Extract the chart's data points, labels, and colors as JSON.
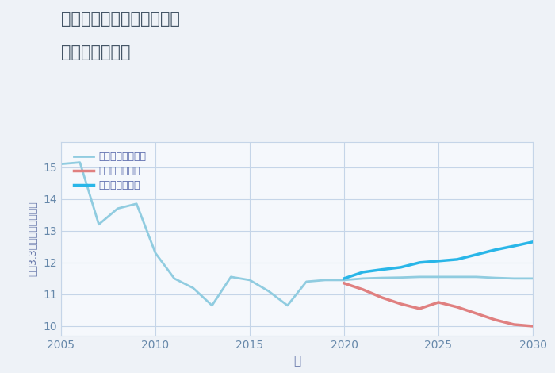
{
  "title_line1": "三重県桑名市長島町新所の",
  "title_line2": "土地の価格推移",
  "xlabel": "年",
  "ylabel": "平（3.3㎡）単価（万円）",
  "ylim": [
    9.7,
    15.8
  ],
  "xlim": [
    2005,
    2030
  ],
  "yticks": [
    10,
    11,
    12,
    13,
    14,
    15
  ],
  "xticks": [
    2005,
    2010,
    2015,
    2020,
    2025,
    2030
  ],
  "bg_color": "#eef2f7",
  "plot_bg_color": "#f5f8fc",
  "grid_color": "#c5d5e8",
  "good_scenario": {
    "label": "グッドシナリオ",
    "color": "#29b6e8",
    "linewidth": 2.5,
    "x": [
      2020,
      2021,
      2022,
      2023,
      2024,
      2025,
      2026,
      2027,
      2028,
      2029,
      2030
    ],
    "y": [
      11.5,
      11.7,
      11.78,
      11.85,
      12.0,
      12.05,
      12.1,
      12.25,
      12.4,
      12.52,
      12.65
    ]
  },
  "bad_scenario": {
    "label": "バッドシナリオ",
    "color": "#e08080",
    "linewidth": 2.5,
    "x": [
      2020,
      2021,
      2022,
      2023,
      2024,
      2025,
      2026,
      2027,
      2028,
      2029,
      2030
    ],
    "y": [
      11.35,
      11.15,
      10.9,
      10.7,
      10.55,
      10.75,
      10.6,
      10.4,
      10.2,
      10.05,
      10.0
    ]
  },
  "normal_scenario": {
    "label": "ノーマルシナリオ",
    "color": "#90cce0",
    "linewidth": 2.0,
    "x": [
      2005,
      2006,
      2007,
      2008,
      2009,
      2010,
      2011,
      2012,
      2013,
      2014,
      2015,
      2016,
      2017,
      2018,
      2019,
      2020,
      2021,
      2022,
      2023,
      2024,
      2025,
      2026,
      2027,
      2028,
      2029,
      2030
    ],
    "y": [
      15.1,
      15.15,
      13.2,
      13.7,
      13.85,
      12.3,
      11.5,
      11.2,
      10.65,
      11.55,
      11.45,
      11.1,
      10.65,
      11.4,
      11.45,
      11.45,
      11.5,
      11.52,
      11.53,
      11.55,
      11.55,
      11.55,
      11.55,
      11.52,
      11.5,
      11.5
    ]
  },
  "legend_text_color": "#5566aa",
  "title_color": "#445566",
  "axis_label_color": "#6677aa",
  "tick_color": "#6688aa"
}
